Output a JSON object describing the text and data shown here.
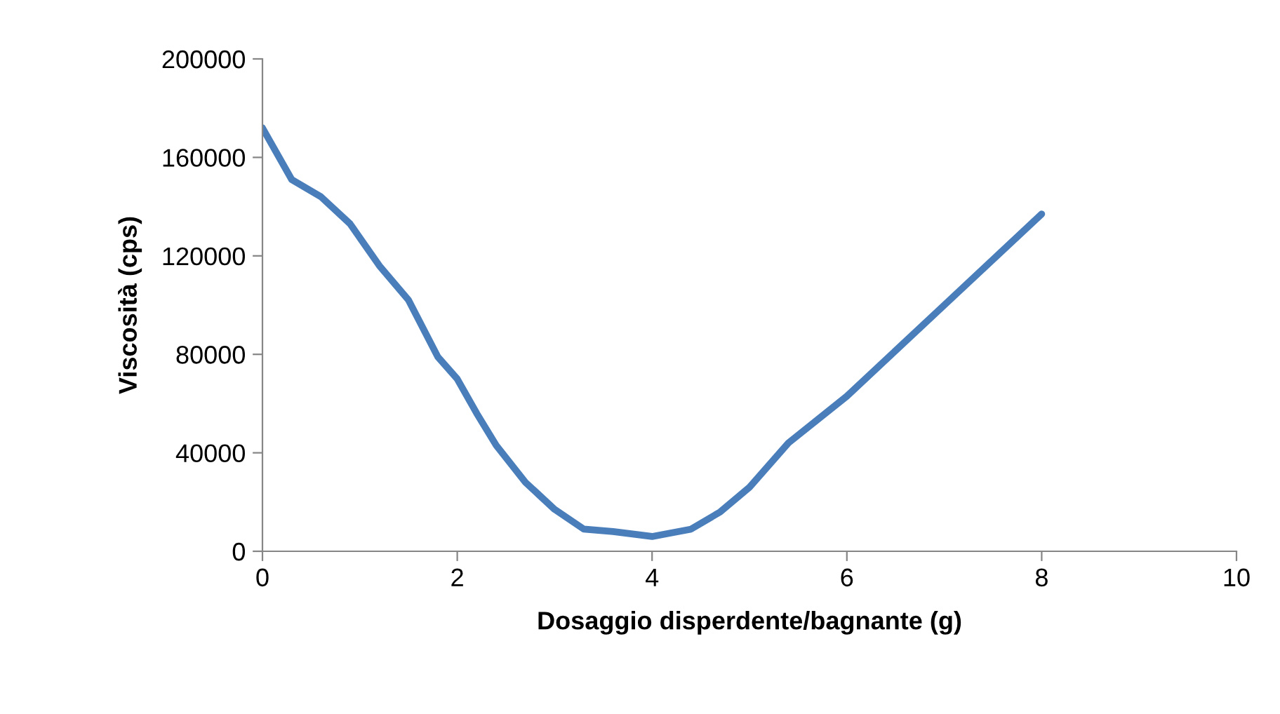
{
  "chart_data": {
    "type": "line",
    "xlabel": "Dosaggio disperdente/bagnante (g)",
    "ylabel": "Viscosità (cps)",
    "series": [
      {
        "color": "#4a7ebb",
        "x": [
          0,
          0.3,
          0.6,
          0.9,
          1.2,
          1.5,
          1.8,
          2.0,
          2.2,
          2.4,
          2.7,
          3.0,
          3.3,
          3.6,
          4.0,
          4.4,
          4.7,
          5.0,
          5.4,
          6.0,
          7.0,
          8.0
        ],
        "values": [
          172000,
          151000,
          144000,
          133000,
          116000,
          102000,
          79000,
          70000,
          56000,
          43000,
          28000,
          17000,
          9000,
          8000,
          6000,
          9000,
          16000,
          26000,
          44000,
          63000,
          100000,
          137000
        ]
      }
    ],
    "xlim": [
      0,
      10
    ],
    "xticks": [
      0,
      2,
      4,
      6,
      8,
      10
    ],
    "ylim": [
      0,
      200000
    ],
    "yticks": [
      0,
      40000,
      80000,
      120000,
      160000,
      200000
    ],
    "grid": false,
    "legend": false,
    "marker": "none",
    "line_style": "solid"
  }
}
